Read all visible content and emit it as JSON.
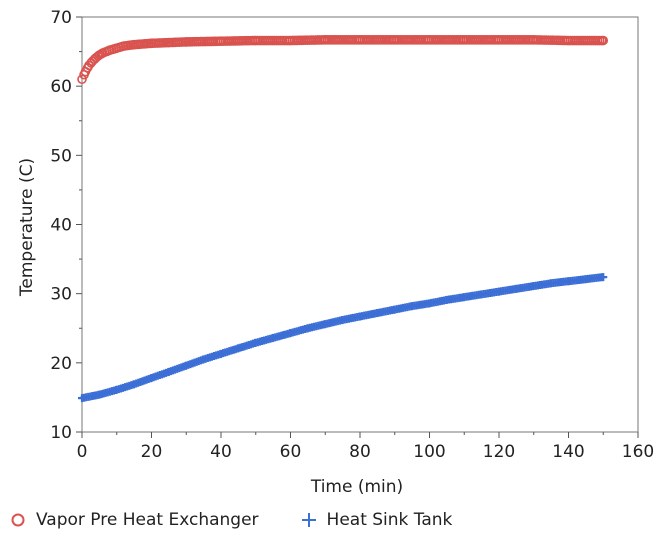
{
  "chart_data": {
    "type": "scatter",
    "xlabel": "Time (min)",
    "ylabel": "Temperature (C)",
    "xlim": [
      0,
      160
    ],
    "ylim": [
      10,
      70
    ],
    "xticks": [
      0,
      20,
      40,
      60,
      80,
      100,
      120,
      140,
      160
    ],
    "yticks": [
      10,
      20,
      30,
      40,
      50,
      60,
      70
    ],
    "grid": false,
    "legend_position": "bottom",
    "series": [
      {
        "name": "Vapor Pre Heat Exchanger",
        "marker": "circle",
        "color": "#d9534f",
        "x": [
          0,
          1,
          2,
          3,
          4,
          5,
          6,
          8,
          10,
          12,
          15,
          20,
          25,
          30,
          40,
          50,
          60,
          70,
          80,
          90,
          100,
          110,
          120,
          130,
          140,
          150
        ],
        "y": [
          61.0,
          62.1,
          63.0,
          63.6,
          64.1,
          64.5,
          64.8,
          65.2,
          65.5,
          65.8,
          66.0,
          66.2,
          66.3,
          66.4,
          66.5,
          66.6,
          66.6,
          66.7,
          66.7,
          66.7,
          66.7,
          66.7,
          66.7,
          66.7,
          66.6,
          66.6
        ]
      },
      {
        "name": "Heat Sink Tank",
        "marker": "plus",
        "color": "#3c6fd6",
        "x": [
          0,
          5,
          10,
          15,
          20,
          25,
          30,
          35,
          40,
          45,
          50,
          55,
          60,
          65,
          70,
          75,
          80,
          85,
          90,
          95,
          100,
          105,
          110,
          115,
          120,
          125,
          130,
          135,
          140,
          145,
          150
        ],
        "y": [
          14.9,
          15.4,
          16.1,
          16.9,
          17.8,
          18.7,
          19.6,
          20.5,
          21.3,
          22.1,
          22.9,
          23.6,
          24.3,
          25.0,
          25.6,
          26.2,
          26.7,
          27.2,
          27.7,
          28.2,
          28.6,
          29.1,
          29.5,
          29.9,
          30.3,
          30.7,
          31.1,
          31.5,
          31.8,
          32.1,
          32.4
        ]
      }
    ]
  }
}
